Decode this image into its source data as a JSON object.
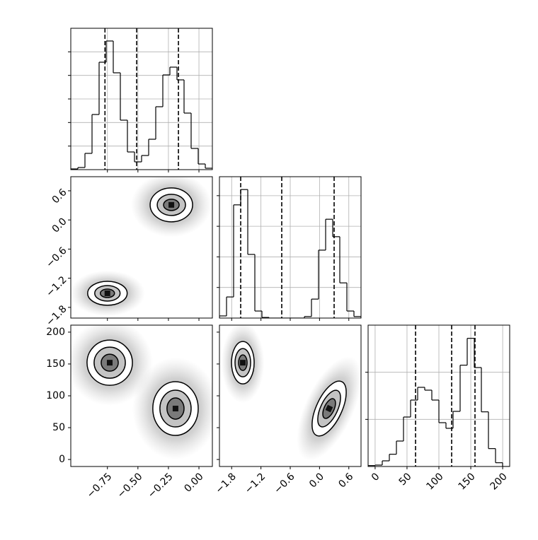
{
  "chart_data": [
    {
      "type": "histogram",
      "color": "#000000",
      "grid": true,
      "bins": [
        -1.05,
        -0.992,
        -0.934,
        -0.876,
        -0.818,
        -0.76,
        -0.702,
        -0.644,
        -0.586,
        -0.528,
        -0.47,
        -0.412,
        -0.354,
        -0.296,
        -0.238,
        -0.18,
        -0.122,
        -0.064,
        -0.006,
        0.052,
        0.11
      ],
      "values": [
        0.03,
        0.09,
        0.69,
        2.34,
        4.56,
        5.46,
        4.11,
        2.1,
        0.75,
        0.33,
        0.6,
        1.29,
        2.67,
        4.02,
        4.35,
        3.81,
        2.4,
        0.9,
        0.24,
        0.06
      ],
      "quantiles": [
        -0.77,
        -0.51,
        -0.168
      ],
      "xlim": [
        -1.05,
        0.11
      ],
      "ylim": [
        0,
        6
      ],
      "xticks": [
        -0.75,
        -0.5,
        -0.25,
        0
      ],
      "yticks": [
        1,
        2,
        3,
        4,
        5
      ],
      "xtick_labels": false,
      "ytick_labels": false
    },
    {
      "type": "contour",
      "grid": false,
      "xlim": [
        -1.05,
        0.11
      ],
      "ylim": [
        -2.02,
        0.89
      ],
      "xticks": [
        -0.75,
        -0.5,
        -0.25,
        0
      ],
      "yticks": [
        0.6,
        {
          "value": 0,
          "label": "0.0"
        },
        {
          "value": -0.6,
          "label": "−0.6"
        },
        {
          "value": -1.2,
          "label": "−1.2"
        },
        {
          "value": -1.8,
          "label": "−1.8"
        }
      ],
      "xtick_labels": false,
      "ytick_labels": true,
      "ytick_rotation": 45,
      "clusters": [
        {
          "x": -0.75,
          "y": -1.51,
          "rx": [
            0.162,
            0.104,
            0.058
          ],
          "ry": [
            0.247,
            0.16,
            0.087
          ],
          "rotate": 0
        },
        {
          "x": -0.226,
          "y": 0.31,
          "rx": [
            0.174,
            0.116,
            0.064
          ],
          "ry": [
            0.349,
            0.218,
            0.116
          ],
          "rotate": 0
        }
      ]
    },
    {
      "type": "histogram",
      "color": "#000000",
      "grid": true,
      "bins": [
        -2.05,
        -1.905,
        -1.76,
        -1.615,
        -1.47,
        -1.325,
        -1.18,
        -1.035,
        -0.89,
        -0.745,
        -0.6,
        -0.455,
        -0.31,
        -0.165,
        -0.02,
        0.125,
        0.27,
        0.415,
        0.56,
        0.705,
        0.85
      ],
      "values": [
        0.07,
        0.69,
        3.7,
        4.2,
        2.08,
        0.23,
        0.02,
        0,
        0,
        0,
        0,
        0,
        0.05,
        0.62,
        2.22,
        3.23,
        2.66,
        1.15,
        0.23,
        0.05
      ],
      "quantiles": [
        -1.615,
        -0.774,
        0.299
      ],
      "xlim": [
        -2.05,
        0.85
      ],
      "ylim": [
        0,
        4.62
      ],
      "xticks": [
        -1.8,
        -1.2,
        -0.6,
        0,
        0.6
      ],
      "yticks": [
        1,
        2,
        3,
        4
      ],
      "xtick_labels": false,
      "ytick_labels": false
    },
    {
      "type": "contour",
      "grid": false,
      "xlim": [
        -1.05,
        0.11
      ],
      "ylim": [
        -11,
        211
      ],
      "xticks": [
        {
          "value": -0.75,
          "label": "−0.75"
        },
        {
          "value": -0.5,
          "label": "−0.50"
        },
        {
          "value": -0.25,
          "label": "−0.25"
        },
        {
          "value": 0,
          "label": "0.00"
        }
      ],
      "yticks": [
        0,
        50,
        100,
        150,
        200
      ],
      "xtick_labels": true,
      "xtick_rotation": 45,
      "ytick_labels": true,
      "ytick_rotation": 0,
      "clusters": [
        {
          "x": -0.731,
          "y": 152,
          "rx": [
            0.186,
            0.128,
            0.07
          ],
          "ry": [
            35.5,
            24.4,
            13.3
          ],
          "rotate": 0
        },
        {
          "x": -0.192,
          "y": 80,
          "rx": [
            0.186,
            0.128,
            0.07
          ],
          "ry": [
            42.2,
            28.9,
            16.7
          ],
          "rotate": 0
        }
      ]
    },
    {
      "type": "contour",
      "grid": false,
      "xlim": [
        -2.05,
        0.85
      ],
      "ylim": [
        -11,
        211
      ],
      "xticks": [
        {
          "value": -1.8,
          "label": "−1.8"
        },
        {
          "value": -1.2,
          "label": "−1.2"
        },
        {
          "value": -0.6,
          "label": "−0.6"
        },
        {
          "value": 0,
          "label": "0.0"
        },
        0.6
      ],
      "yticks": [
        0,
        50,
        100,
        150,
        200
      ],
      "xtick_labels": true,
      "xtick_rotation": 45,
      "ytick_labels": false,
      "clusters": [
        {
          "x": -1.571,
          "y": 152,
          "rx": [
            0.232,
            0.16,
            0.087
          ],
          "ry": [
            33.3,
            22.2,
            12.2
          ],
          "rotate": 0
        },
        {
          "x": 0.197,
          "y": 80,
          "rx": [
            0.261,
            0.174,
            0.101
          ],
          "ry": [
            46.6,
            31.1,
            16.7
          ],
          "rotate": 25
        }
      ]
    },
    {
      "type": "histogram",
      "color": "#000000",
      "grid": true,
      "bins": [
        -11,
        0.1,
        11.2,
        22.3,
        33.4,
        44.5,
        55.6,
        66.7,
        77.8,
        88.9,
        100,
        111.1,
        122.2,
        133.3,
        144.4,
        155.5,
        166.6,
        177.7,
        188.8,
        199.9,
        211
      ],
      "values": [
        0.02,
        0.03,
        0.12,
        0.26,
        0.54,
        1.05,
        1.41,
        1.68,
        1.62,
        1.41,
        0.93,
        0.81,
        1.17,
        2.15,
        2.72,
        2.1,
        1.16,
        0.38,
        0.08,
        0
      ],
      "quantiles": [
        63.4,
        120,
        156.6
      ],
      "xlim": [
        -11,
        211
      ],
      "ylim": [
        0,
        3
      ],
      "xticks": [
        0,
        50,
        100,
        150,
        200
      ],
      "yticks": [
        1,
        2
      ],
      "xtick_labels": true,
      "xtick_rotation": 45,
      "ytick_labels": false
    }
  ]
}
